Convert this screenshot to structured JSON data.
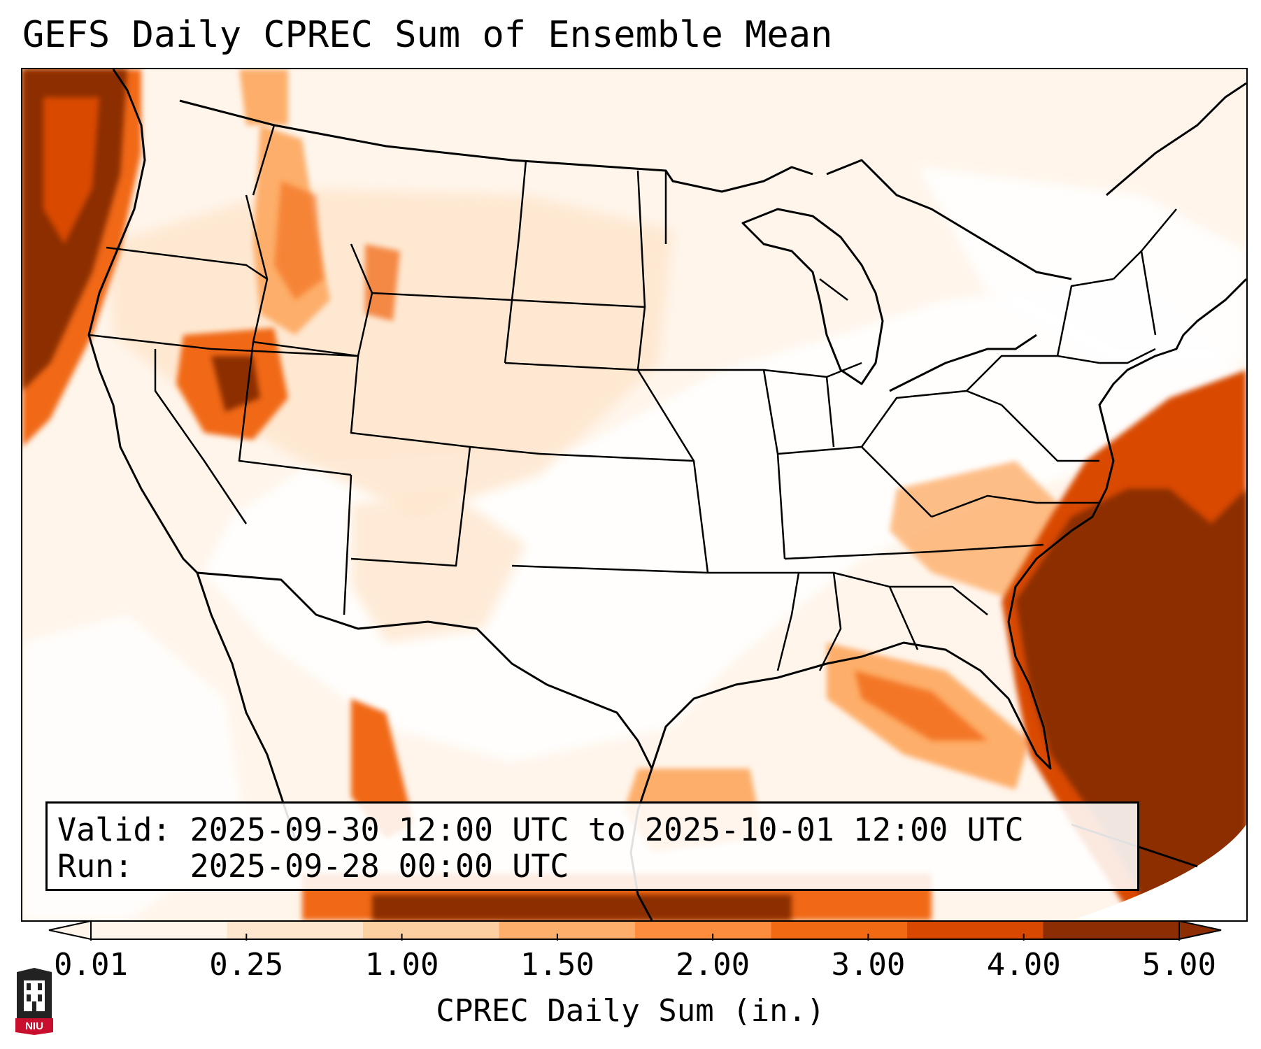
{
  "title": "GEFS Daily CPREC Sum of Ensemble Mean",
  "info": {
    "valid_label": "Valid:",
    "valid_value": "2025-09-30 12:00 UTC to 2025-10-01 12:00 UTC",
    "run_label": "Run:",
    "run_value": "2025-09-28 00:00 UTC"
  },
  "colorbar": {
    "label": "CPREC Daily Sum (in.)",
    "ticks": [
      "0.01",
      "0.25",
      "1.00",
      "1.50",
      "2.00",
      "3.00",
      "4.00",
      "5.00"
    ],
    "colors": [
      "#fff5eb",
      "#fee6ce",
      "#fdd0a2",
      "#fdae6b",
      "#fd8d3c",
      "#f16913",
      "#d94801",
      "#8c2d04"
    ],
    "extend": "both"
  },
  "map": {
    "region": "Contiguous United States",
    "projection": "lambert-conformal",
    "precip_colors": {
      "trace": "#fff5eb",
      "light": "#fee6ce",
      "light_moderate": "#fdd0a2",
      "moderate": "#fdae6b",
      "heavy": "#f16913",
      "extreme": "#8c2d04"
    }
  },
  "logo": {
    "text": "NIU",
    "color": "#c8102e"
  }
}
